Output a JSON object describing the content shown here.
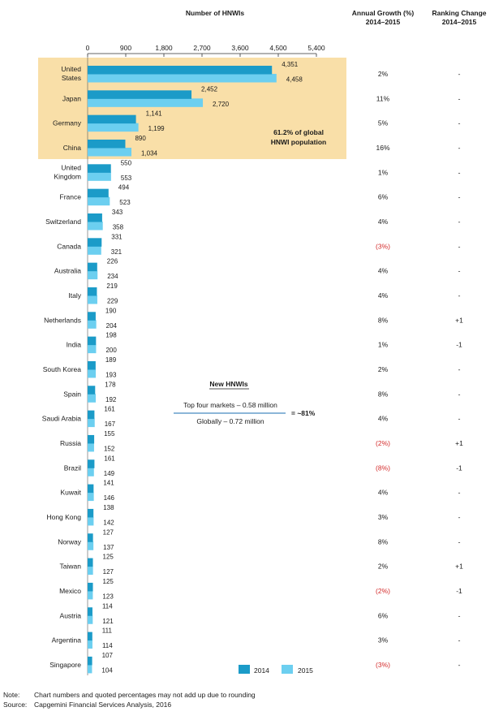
{
  "chart_data": {
    "type": "bar",
    "orientation": "horizontal",
    "header": {
      "title": "Number of HNWIs",
      "growth_title": "Annual Growth (%)",
      "growth_period": "2014–2015",
      "rank_title": "Ranking Change",
      "rank_period": "2014–2015"
    },
    "xlim": [
      0,
      5400
    ],
    "xticks": [
      "0",
      "900",
      "1,800",
      "2,700",
      "3,600",
      "4,500",
      "5,400"
    ],
    "tick_values": [
      0,
      900,
      1800,
      2700,
      3600,
      4500,
      5400
    ],
    "categories": [
      [
        "United",
        "States"
      ],
      [
        "Japan"
      ],
      [
        "Germany"
      ],
      [
        "China"
      ],
      [
        "United",
        "Kingdom"
      ],
      [
        "France"
      ],
      [
        "Switzerland"
      ],
      [
        "Canada"
      ],
      [
        "Australia"
      ],
      [
        "Italy"
      ],
      [
        "Netherlands"
      ],
      [
        "India"
      ],
      [
        "South Korea"
      ],
      [
        "Spain"
      ],
      [
        "Saudi Arabia"
      ],
      [
        "Russia"
      ],
      [
        "Brazil"
      ],
      [
        "Kuwait"
      ],
      [
        "Hong Kong"
      ],
      [
        "Norway"
      ],
      [
        "Taiwan"
      ],
      [
        "Mexico"
      ],
      [
        "Austria"
      ],
      [
        "Argentina"
      ],
      [
        "Singapore"
      ]
    ],
    "series": [
      {
        "name": "2014",
        "color": "#1b9bc8",
        "values": [
          4351,
          2452,
          1141,
          890,
          550,
          494,
          343,
          331,
          226,
          219,
          190,
          198,
          189,
          178,
          161,
          155,
          161,
          141,
          138,
          127,
          125,
          125,
          114,
          111,
          107
        ],
        "labels": [
          "4,351",
          "2,452",
          "1,141",
          "890",
          "550",
          "494",
          "343",
          "331",
          "226",
          "219",
          "190",
          "198",
          "189",
          "178",
          "161",
          "155",
          "161",
          "141",
          "138",
          "127",
          "125",
          "125",
          "114",
          "111",
          "107"
        ]
      },
      {
        "name": "2015",
        "color": "#6ccff0",
        "values": [
          4458,
          2720,
          1199,
          1034,
          553,
          523,
          358,
          321,
          234,
          229,
          204,
          200,
          193,
          192,
          167,
          152,
          149,
          146,
          142,
          137,
          127,
          123,
          121,
          114,
          104
        ],
        "labels": [
          "4,458",
          "2,720",
          "1,199",
          "1,034",
          "553",
          "523",
          "358",
          "321",
          "234",
          "229",
          "204",
          "200",
          "193",
          "192",
          "167",
          "152",
          "149",
          "146",
          "142",
          "137",
          "127",
          "123",
          "121",
          "114",
          "104"
        ]
      }
    ],
    "growth": [
      "2%",
      "11%",
      "5%",
      "16%",
      "1%",
      "6%",
      "4%",
      "(3%)",
      "4%",
      "4%",
      "8%",
      "1%",
      "2%",
      "8%",
      "4%",
      "(2%)",
      "(8%)",
      "4%",
      "3%",
      "8%",
      "2%",
      "(2%)",
      "6%",
      "3%",
      "(3%)"
    ],
    "ranking_change": [
      "-",
      "-",
      "-",
      "-",
      "-",
      "-",
      "-",
      "-",
      "-",
      "-",
      "+1",
      "-1",
      "-",
      "-",
      "-",
      "+1",
      "-1",
      "-",
      "-",
      "-",
      "+1",
      "-1",
      "-",
      "-",
      "-"
    ],
    "highlight": {
      "rows": 4,
      "label_line1": "61.2% of global",
      "label_line2": "HNWI population",
      "color": "#f9dfa8"
    },
    "annotation": {
      "title": "New HNWIs",
      "numerator": "Top four markets – 0.58 million",
      "denominator": "Globally – 0.72 million",
      "result": "= ~81%"
    },
    "legend": {
      "position": "bottom-right",
      "entries": [
        "2014",
        "2015"
      ]
    },
    "colors": {
      "negative": "#d42b2b",
      "positive": "#3aa935",
      "highlight": "#f9dfa8"
    }
  },
  "notes": {
    "note_label": "Note:",
    "note_text": "Chart numbers and quoted percentages may not add up due to rounding",
    "source_label": "Source:",
    "source_text": "Capgemini Financial Services Analysis, 2016"
  }
}
